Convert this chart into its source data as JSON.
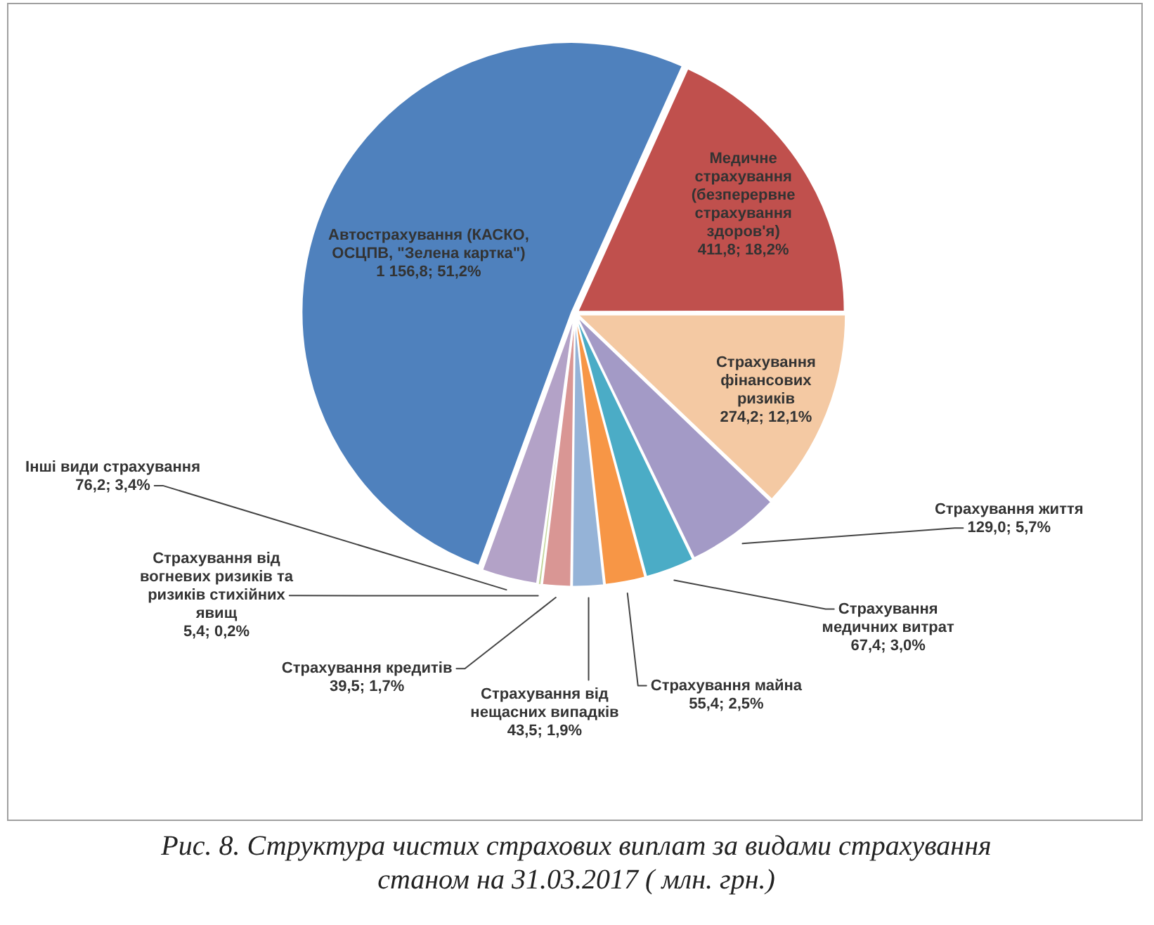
{
  "chart_data": {
    "type": "pie",
    "title": "Рис. 8. Структура чистих страхових виплат за видами страхування станом на 31.03.2017 ( млн. грн.)",
    "categories": [
      "Автострахування (КАСКО, ОСЦПВ, \"Зелена картка\")",
      "Медичне страхування (безперервне страхування здоров'я)",
      "Страхування фінансових ризиків",
      "Страхування життя",
      "Страхування медичних витрат",
      "Страхування майна",
      "Страхування від нещасних випадків",
      "Страхування кредитів",
      "Страхування від вогневих ризиків та ризиків стихійних явищ",
      "Інші види страхування"
    ],
    "values": [
      1156.8,
      411.8,
      274.2,
      129.0,
      67.4,
      55.4,
      43.5,
      39.5,
      5.4,
      76.2
    ],
    "value_labels": [
      "1 156,8; 51,2%",
      "411,8; 18,2%",
      "274,2; 12,1%",
      "129,0; 5,7%",
      "67,4; 3,0%",
      "55,4; 2,5%",
      "43,5; 1,9%",
      "39,5; 1,7%",
      "5,4; 0,2%",
      "76,2; 3,4%"
    ],
    "colors": [
      "#4f81bd",
      "#c0504d",
      "#f4c9a3",
      "#a39ac6",
      "#4bacc6",
      "#f79646",
      "#95b3d7",
      "#d99694",
      "#c3d69b",
      "#b3a2c7"
    ]
  }
}
